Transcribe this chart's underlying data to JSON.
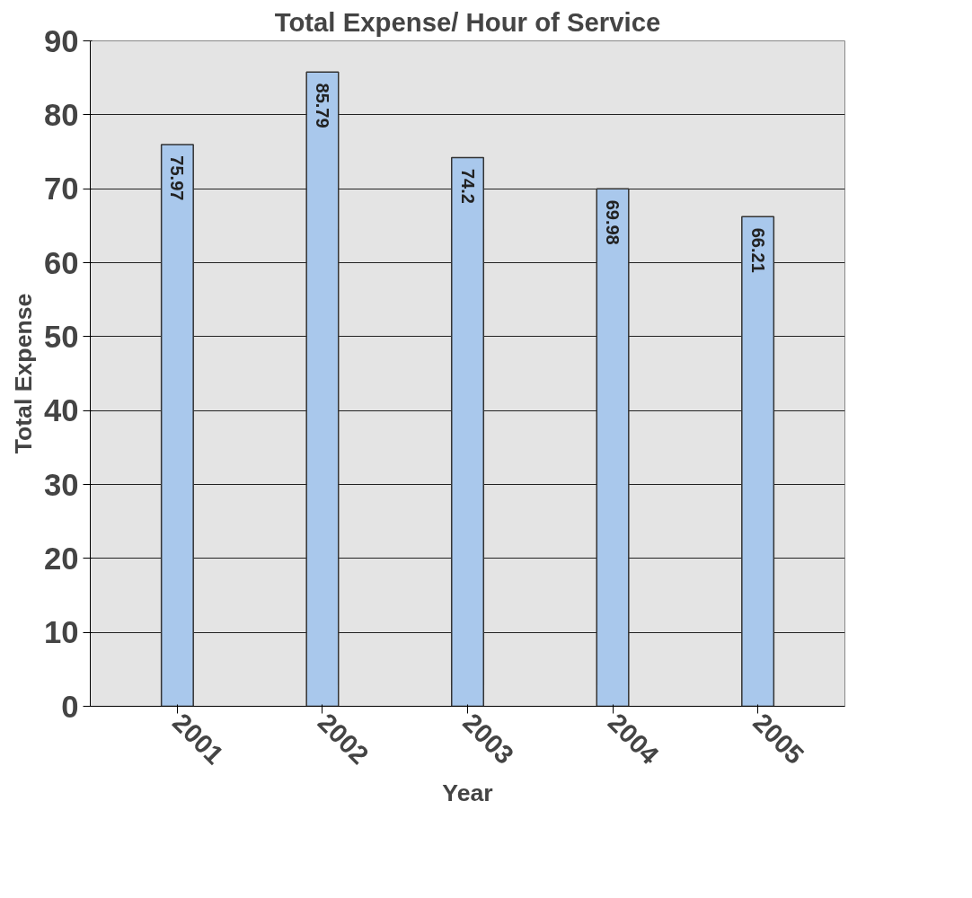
{
  "chart_data": {
    "type": "bar",
    "title": "Total Expense/ Hour of Service",
    "xlabel": "Year",
    "ylabel": "Total Expense",
    "categories": [
      "2001",
      "2002",
      "2003",
      "2004",
      "2005"
    ],
    "values": [
      75.97,
      85.79,
      74.2,
      69.98,
      66.21
    ],
    "color": "#a9c8ec",
    "ylim": [
      0,
      90
    ],
    "yticks": [
      0,
      10,
      20,
      30,
      40,
      50,
      60,
      70,
      80,
      90
    ],
    "grid": "y",
    "data_labels": true
  }
}
